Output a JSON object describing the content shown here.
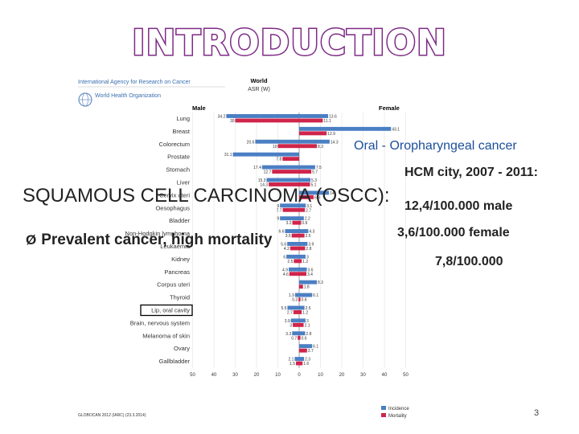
{
  "slide": {
    "title": "INTRODUCTION",
    "scc_heading": "SQUAMOUS CELL CARCINOMA (OSCC):",
    "bullet_arrow": "Ø",
    "bullet_text": "Prevalent cancer, high mortality",
    "oral_label": "Oral - Oropharyngeal cancer",
    "hcm_line": "HCM city, 2007 - 2011:",
    "male_rate": "12,4/100.000 male",
    "female_rate": "3,6/100.000 female",
    "total_rate": "7,8/100.000",
    "page_number": "3"
  },
  "figure": {
    "agency": "International Agency for Research on Cancer",
    "who": "World Health Organization",
    "header_line1": "World",
    "header_line2": "ASR (W)",
    "male_label": "Male",
    "female_label": "Female",
    "source": "GLOBOCAN 2012 (IARC) (23.3.2014)",
    "legend": [
      {
        "label": "Incidence",
        "color": "#4b7fc4"
      },
      {
        "label": "Mortality",
        "color": "#d0254b"
      }
    ]
  },
  "chart_data": {
    "type": "bar",
    "layout": "population pyramid (male left, female right)",
    "x_ticks": [
      "50",
      "40",
      "30",
      "20",
      "10",
      "0",
      "10",
      "20",
      "30",
      "40",
      "50"
    ],
    "xlim": [
      -50,
      50
    ],
    "series_colors": {
      "incidence": "#4b7fc4",
      "mortality": "#d0254b"
    },
    "categories": [
      {
        "name": "Lung",
        "male_inc": 34.2,
        "male_mort": 30,
        "female_inc": 13.6,
        "female_mort": 11.1
      },
      {
        "name": "Breast",
        "male_inc": 0,
        "male_mort": 0,
        "female_inc": 43.1,
        "female_mort": 12.9
      },
      {
        "name": "Colorectum",
        "male_inc": 20.6,
        "male_mort": 10,
        "female_inc": 14.3,
        "female_mort": 8.3
      },
      {
        "name": "Prostate",
        "male_inc": 31.1,
        "male_mort": 7.8,
        "female_inc": 0,
        "female_mort": 0
      },
      {
        "name": "Stomach",
        "male_inc": 17.4,
        "male_mort": 12.7,
        "female_inc": 7.5,
        "female_mort": 5.7
      },
      {
        "name": "Liver",
        "male_inc": 15.3,
        "male_mort": 14.3,
        "female_inc": 5.3,
        "female_mort": 5.1
      },
      {
        "name": "Cervix uteri",
        "male_inc": 0,
        "male_mort": 0,
        "female_inc": 14,
        "female_mort": 6.8
      },
      {
        "name": "Oesophagus",
        "male_inc": 9,
        "male_mort": 7.7,
        "female_inc": 3.1,
        "female_mort": 2.7
      },
      {
        "name": "Bladder",
        "male_inc": 9,
        "male_mort": 3.2,
        "female_inc": 2.2,
        "female_mort": 0.9
      },
      {
        "name": "Non-Hodgkin lymphoma",
        "male_inc": 6.6,
        "male_mort": 3.5,
        "female_inc": 4.3,
        "female_mort": 2.5
      },
      {
        "name": "Leukaemia",
        "male_inc": 5.6,
        "male_mort": 4.2,
        "female_inc": 3.9,
        "female_mort": 2.8
      },
      {
        "name": "Kidney",
        "male_inc": 6,
        "male_mort": 2.5,
        "female_inc": 3,
        "female_mort": 1.2
      },
      {
        "name": "Pancreas",
        "male_inc": 4.9,
        "male_mort": 4.6,
        "female_inc": 3.6,
        "female_mort": 3.4
      },
      {
        "name": "Corpus uteri",
        "male_inc": 0,
        "male_mort": 0,
        "female_inc": 8.3,
        "female_mort": 1.8
      },
      {
        "name": "Thyroid",
        "male_inc": 1.9,
        "male_mort": 0.3,
        "female_inc": 6.1,
        "female_mort": 0.6
      },
      {
        "name": "Lip, oral cavity",
        "male_inc": 5.5,
        "male_mort": 2.7,
        "female_inc": 2.5,
        "female_mort": 1.2
      },
      {
        "name": "Brain, nervous system",
        "male_inc": 3.9,
        "male_mort": 3,
        "female_inc": 3,
        "female_mort": 2.1
      },
      {
        "name": "Melanoma of skin",
        "male_inc": 3.3,
        "male_mort": 0.7,
        "female_inc": 2.8,
        "female_mort": 0.6
      },
      {
        "name": "Ovary",
        "male_inc": 0,
        "male_mort": 0,
        "female_inc": 6.1,
        "female_mort": 3.7
      },
      {
        "name": "Gallbladder",
        "male_inc": 2.1,
        "male_mort": 1.5,
        "female_inc": 2.3,
        "female_mort": 1.6
      }
    ],
    "highlighted_category": "Lip, oral cavity"
  }
}
